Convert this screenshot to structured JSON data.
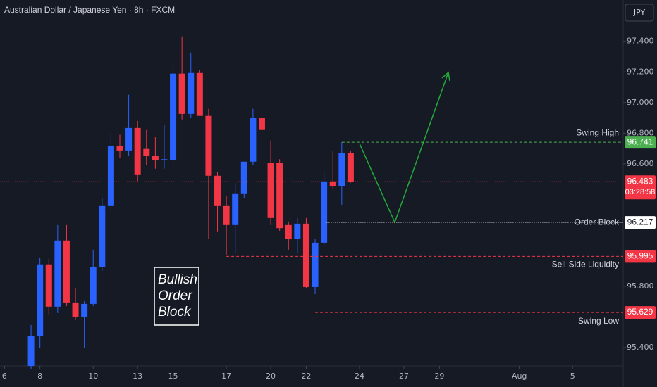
{
  "chart_data": {
    "type": "candlestick",
    "title": "Australian Dollar / Japanese Yen · 8h · FXCM",
    "currency": "JPY",
    "up_color": "#2962ff",
    "down_color": "#f23645",
    "open": [
      95.28,
      95.474,
      95.943,
      95.667,
      96.099,
      95.694,
      95.602,
      95.685,
      95.924,
      96.324,
      96.715,
      96.687,
      96.834,
      96.697,
      96.651,
      96.625,
      96.623,
      97.189,
      96.926,
      97.193,
      96.913,
      96.522,
      96.324,
      96.2,
      96.407,
      96.614,
      96.899,
      96.605,
      96.605,
      96.2,
      96.108,
      96.209,
      95.795,
      96.085,
      96.485,
      96.453,
      96.669
    ],
    "high": [
      95.547,
      95.984,
      95.979,
      96.2,
      96.2,
      95.786,
      95.703,
      96.039,
      96.375,
      96.807,
      96.789,
      97.051,
      96.88,
      96.821,
      96.775,
      96.853,
      97.257,
      97.432,
      97.326,
      97.211,
      96.959,
      96.545,
      96.393,
      96.476,
      96.614,
      96.959,
      96.959,
      96.752,
      96.63,
      96.223,
      96.246,
      96.246,
      96.108,
      96.545,
      96.683,
      96.741,
      96.683
    ],
    "low": [
      95.257,
      95.395,
      95.612,
      95.625,
      95.671,
      95.579,
      95.395,
      95.671,
      95.901,
      96.292,
      96.637,
      96.651,
      96.485,
      96.591,
      96.568,
      96.568,
      96.591,
      96.89,
      96.899,
      96.913,
      96.108,
      96.154,
      96.007,
      96.016,
      96.375,
      96.591,
      96.798,
      96.2,
      96.16,
      96.039,
      96.016,
      95.786,
      95.749,
      96.062,
      96.439,
      96.329,
      96.476
    ],
    "close": [
      95.474,
      95.943,
      95.667,
      96.099,
      95.694,
      95.602,
      95.685,
      95.924,
      96.324,
      96.715,
      96.687,
      96.834,
      96.531,
      96.651,
      96.623,
      96.63,
      97.189,
      96.926,
      97.193,
      96.913,
      96.522,
      96.324,
      96.2,
      96.407,
      96.614,
      96.899,
      96.821,
      96.246,
      96.18,
      96.108,
      96.209,
      95.795,
      96.085,
      96.485,
      96.453,
      96.669,
      96.483
    ],
    "xlim": [
      -3.5,
      66.7
    ],
    "xticks": [
      {
        "value": -3,
        "label": "6"
      },
      {
        "value": 1,
        "label": "8"
      },
      {
        "value": 7,
        "label": "10"
      },
      {
        "value": 12,
        "label": "13"
      },
      {
        "value": 16,
        "label": "15"
      },
      {
        "value": 22,
        "label": "17"
      },
      {
        "value": 27,
        "label": "20"
      },
      {
        "value": 31,
        "label": "22"
      },
      {
        "value": 37,
        "label": "24"
      },
      {
        "value": 42,
        "label": "27"
      },
      {
        "value": 46,
        "label": "29"
      },
      {
        "value": 55,
        "label": "Aug"
      },
      {
        "value": 61,
        "label": "5"
      }
    ],
    "ylim": [
      95.28,
      97.67
    ],
    "yticks": [
      {
        "value": 95.4,
        "label": "95.400"
      },
      {
        "value": 95.8,
        "label": "95.800"
      },
      {
        "value": 96.6,
        "label": "96.600"
      },
      {
        "value": 96.8,
        "label": "96.800"
      },
      {
        "value": 97.0,
        "label": "97.000"
      },
      {
        "value": 97.2,
        "label": "97.200"
      },
      {
        "value": 97.4,
        "label": "97.400"
      }
    ],
    "levels": [
      {
        "label": "Swing High",
        "value": 96.741,
        "color": "#4caf50",
        "line": "dashed",
        "start": 35
      },
      {
        "label": "Order Block",
        "value": 96.217,
        "color": "#ffffff",
        "line": "dotted",
        "start": 33.3
      },
      {
        "label": "Sell-Side Liquidity",
        "value": 95.995,
        "color": "#f23645",
        "line": "dashed",
        "start": 22
      },
      {
        "label": "Swing Low",
        "value": 95.629,
        "color": "#f23645",
        "line": "dashed",
        "start": 32
      }
    ],
    "last_price": {
      "value": 96.483,
      "countdown": "03:28:58",
      "color": "#f23645"
    },
    "box_text": [
      "Bullish",
      "Order",
      "Block"
    ]
  }
}
